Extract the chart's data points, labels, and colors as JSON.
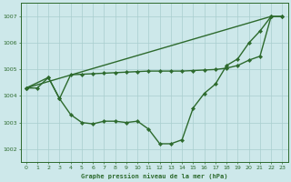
{
  "title": "Graphe pression niveau de la mer (hPa)",
  "bg_color": "#cde8ea",
  "line_color": "#2d6a2d",
  "grid_color": "#a8cece",
  "xlim": [
    -0.5,
    23.5
  ],
  "ylim": [
    1001.5,
    1007.5
  ],
  "yticks": [
    1002,
    1003,
    1004,
    1005,
    1006,
    1007
  ],
  "xticks": [
    0,
    1,
    2,
    3,
    4,
    5,
    6,
    7,
    8,
    9,
    10,
    11,
    12,
    13,
    14,
    15,
    16,
    17,
    18,
    19,
    20,
    21,
    22,
    23
  ],
  "series_main": {
    "x": [
      0,
      1,
      2,
      3,
      4,
      5,
      6,
      7,
      8,
      9,
      10,
      11,
      12,
      13,
      14,
      15,
      16,
      17,
      18,
      19,
      20,
      21,
      22
    ],
    "y": [
      1004.3,
      1004.3,
      1004.7,
      1003.9,
      1003.3,
      1003.0,
      1002.95,
      1003.05,
      1003.05,
      1003.0,
      1003.05,
      1002.75,
      1002.2,
      1002.2,
      1002.35,
      1003.55,
      1004.1,
      1004.45,
      1005.15,
      1005.4,
      1006.0,
      1006.45,
      1007.0
    ]
  },
  "series_flat": {
    "x": [
      0,
      2,
      3,
      4,
      5,
      6,
      7,
      8,
      9,
      10,
      11,
      12,
      13,
      14,
      15,
      16,
      17,
      18,
      19,
      20,
      21,
      22,
      23
    ],
    "y": [
      1004.3,
      1004.7,
      1003.9,
      1004.8,
      1004.82,
      1004.84,
      1004.86,
      1004.88,
      1004.9,
      1004.92,
      1004.94,
      1004.94,
      1004.94,
      1004.94,
      1004.96,
      1004.98,
      1005.0,
      1005.05,
      1005.15,
      1005.35,
      1005.5,
      1007.0,
      1007.0
    ]
  },
  "series_diag": {
    "x": [
      0,
      22,
      23
    ],
    "y": [
      1004.3,
      1007.0,
      1007.0
    ]
  },
  "marker": "D",
  "marker_size": 2.2,
  "linewidth": 1.0
}
